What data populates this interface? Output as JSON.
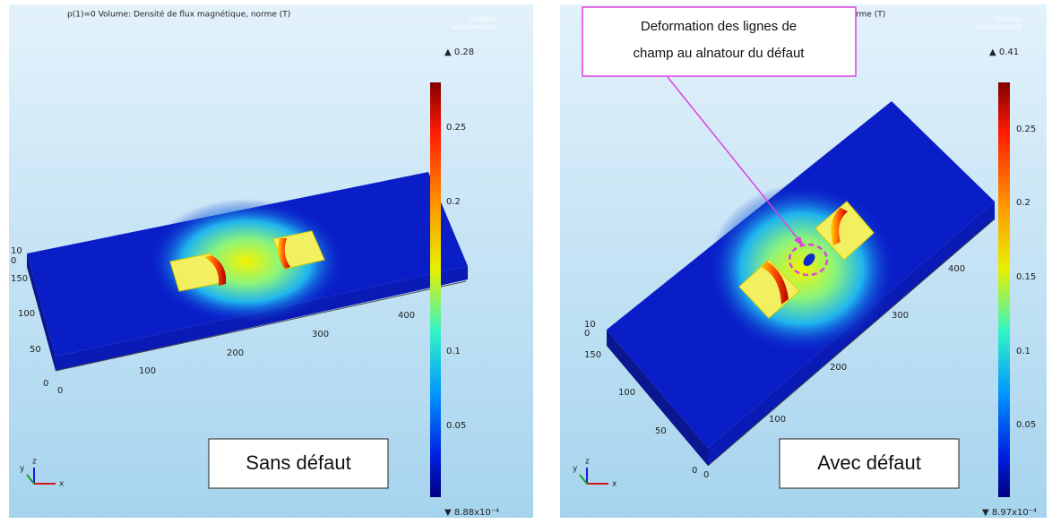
{
  "panels": [
    {
      "header": "p(1)=0   Volume: Densité de flux magnétique, norme (T)",
      "logo": [
        "COMSOL",
        "MULTIPHYSICS"
      ],
      "colorbar": {
        "max": "▲ 0.28",
        "min": "▼ 8.88x10⁻⁴",
        "ticks": [
          "0.25",
          "0.2",
          "0.1",
          "0.05"
        ]
      },
      "axis_labels": [
        "10",
        "0",
        "150",
        "100",
        "50",
        "0",
        "0",
        "100",
        "200",
        "300",
        "400"
      ],
      "triad": [
        "z",
        "y",
        "x"
      ],
      "caption": "Sans défaut"
    },
    {
      "header": "rme (T)",
      "logo": [
        "COMSOL",
        "MULTIPHYSICS"
      ],
      "colorbar": {
        "max": "▲ 0.41",
        "min": "▼ 8.97x10⁻⁴",
        "ticks": [
          "0.25",
          "0.2",
          "0.15",
          "0.1",
          "0.05"
        ]
      },
      "axis_labels": [
        "10",
        "0",
        "150",
        "100",
        "50",
        "0",
        "0",
        "100",
        "200",
        "300",
        "400"
      ],
      "triad": [
        "z",
        "y",
        "x"
      ],
      "caption": "Avec défaut",
      "annotation": [
        "Deformation  des  lignes  de",
        "champ au alnatour du défaut"
      ]
    }
  ]
}
